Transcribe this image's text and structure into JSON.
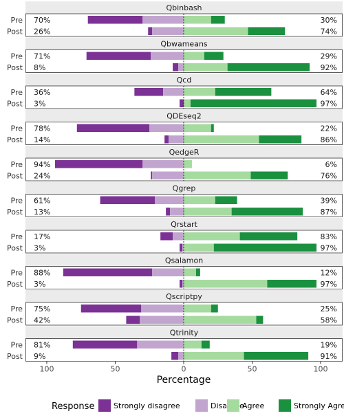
{
  "chart_data": {
    "type": "bar",
    "subtype": "diverging-stacked-horizontal",
    "xlabel": "Percentage",
    "x_ticks": [
      100,
      50,
      0,
      50,
      100
    ],
    "xlim": [
      -100,
      100
    ],
    "grid": false,
    "legend": {
      "title": "Response",
      "placement": "bottom",
      "entries": [
        {
          "label": "Strongly disagree",
          "color": "#7b3294"
        },
        {
          "label": "Disagree",
          "color": "#c2a5cf"
        },
        {
          "label": "Agree",
          "color": "#a6dba0"
        },
        {
          "label": "Strongly Agree",
          "color": "#1b9140"
        }
      ]
    },
    "panels": [
      {
        "title": "Qbinbash",
        "rows": [
          {
            "label": "Pre",
            "left_pct": "70%",
            "right_pct": "30%",
            "strongly_disagree": 40,
            "disagree": 30,
            "agree": 20,
            "strongly_agree": 10
          },
          {
            "label": "Post",
            "left_pct": "26%",
            "right_pct": "74%",
            "strongly_disagree": 3,
            "disagree": 23,
            "agree": 47,
            "strongly_agree": 27
          }
        ]
      },
      {
        "title": "Qbwameans",
        "rows": [
          {
            "label": "Pre",
            "left_pct": "71%",
            "right_pct": "29%",
            "strongly_disagree": 47,
            "disagree": 24,
            "agree": 15,
            "strongly_agree": 14
          },
          {
            "label": "Post",
            "left_pct": "8%",
            "right_pct": "92%",
            "strongly_disagree": 4,
            "disagree": 4,
            "agree": 32,
            "strongly_agree": 60
          }
        ]
      },
      {
        "title": "Qcd",
        "rows": [
          {
            "label": "Pre",
            "left_pct": "36%",
            "right_pct": "64%",
            "strongly_disagree": 21,
            "disagree": 15,
            "agree": 23,
            "strongly_agree": 41
          },
          {
            "label": "Post",
            "left_pct": "3%",
            "right_pct": "97%",
            "strongly_disagree": 3,
            "disagree": 0,
            "agree": 5,
            "strongly_agree": 92
          }
        ]
      },
      {
        "title": "QDEseq2",
        "rows": [
          {
            "label": "Pre",
            "left_pct": "78%",
            "right_pct": "22%",
            "strongly_disagree": 53,
            "disagree": 25,
            "agree": 20,
            "strongly_agree": 2
          },
          {
            "label": "Post",
            "left_pct": "14%",
            "right_pct": "86%",
            "strongly_disagree": 3,
            "disagree": 11,
            "agree": 55,
            "strongly_agree": 31
          }
        ]
      },
      {
        "title": "QedgeR",
        "rows": [
          {
            "label": "Pre",
            "left_pct": "94%",
            "right_pct": "6%",
            "strongly_disagree": 64,
            "disagree": 30,
            "agree": 6,
            "strongly_agree": 0
          },
          {
            "label": "Post",
            "left_pct": "24%",
            "right_pct": "76%",
            "strongly_disagree": 1,
            "disagree": 23,
            "agree": 49,
            "strongly_agree": 27
          }
        ]
      },
      {
        "title": "Qgrep",
        "rows": [
          {
            "label": "Pre",
            "left_pct": "61%",
            "right_pct": "39%",
            "strongly_disagree": 40,
            "disagree": 21,
            "agree": 23,
            "strongly_agree": 16
          },
          {
            "label": "Post",
            "left_pct": "13%",
            "right_pct": "87%",
            "strongly_disagree": 3,
            "disagree": 10,
            "agree": 35,
            "strongly_agree": 52
          }
        ]
      },
      {
        "title": "Qrstart",
        "rows": [
          {
            "label": "Pre",
            "left_pct": "17%",
            "right_pct": "83%",
            "strongly_disagree": 9,
            "disagree": 8,
            "agree": 41,
            "strongly_agree": 42
          },
          {
            "label": "Post",
            "left_pct": "3%",
            "right_pct": "97%",
            "strongly_disagree": 2,
            "disagree": 1,
            "agree": 22,
            "strongly_agree": 75
          }
        ]
      },
      {
        "title": "Qsalamon",
        "rows": [
          {
            "label": "Pre",
            "left_pct": "88%",
            "right_pct": "12%",
            "strongly_disagree": 65,
            "disagree": 23,
            "agree": 9,
            "strongly_agree": 3
          },
          {
            "label": "Post",
            "left_pct": "3%",
            "right_pct": "97%",
            "strongly_disagree": 2,
            "disagree": 1,
            "agree": 61,
            "strongly_agree": 36
          }
        ]
      },
      {
        "title": "Qscriptpy",
        "rows": [
          {
            "label": "Pre",
            "left_pct": "75%",
            "right_pct": "25%",
            "strongly_disagree": 44,
            "disagree": 31,
            "agree": 20,
            "strongly_agree": 5
          },
          {
            "label": "Post",
            "left_pct": "42%",
            "right_pct": "58%",
            "strongly_disagree": 10,
            "disagree": 32,
            "agree": 53,
            "strongly_agree": 5
          }
        ]
      },
      {
        "title": "Qtrinity",
        "rows": [
          {
            "label": "Pre",
            "left_pct": "81%",
            "right_pct": "19%",
            "strongly_disagree": 47,
            "disagree": 34,
            "agree": 13,
            "strongly_agree": 6
          },
          {
            "label": "Post",
            "left_pct": "9%",
            "right_pct": "91%",
            "strongly_disagree": 5,
            "disagree": 4,
            "agree": 44,
            "strongly_agree": 47
          }
        ]
      }
    ]
  }
}
